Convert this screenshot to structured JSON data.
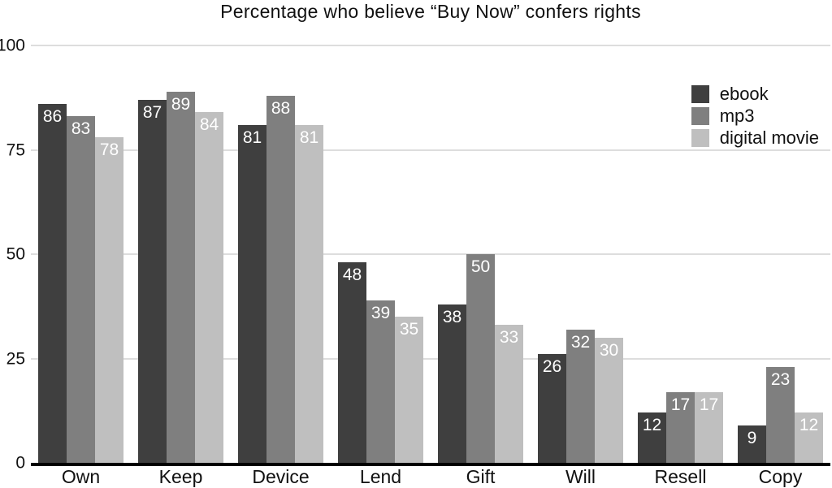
{
  "chart_data": {
    "type": "bar",
    "title": "Percentage who believe “Buy Now” confers rights",
    "categories": [
      "Own",
      "Keep",
      "Device",
      "Lend",
      "Gift",
      "Will",
      "Resell",
      "Copy"
    ],
    "series": [
      {
        "name": "ebook",
        "color": "#3f3f3f",
        "values": [
          86,
          87,
          81,
          48,
          38,
          26,
          12,
          9
        ]
      },
      {
        "name": "mp3",
        "color": "#7f7f7f",
        "values": [
          83,
          89,
          88,
          39,
          50,
          32,
          17,
          23
        ]
      },
      {
        "name": "digital movie",
        "color": "#bfbfbf",
        "values": [
          78,
          84,
          81,
          35,
          33,
          30,
          17,
          12
        ]
      }
    ],
    "xlabel": "",
    "ylabel": "",
    "ylim": [
      0,
      100
    ],
    "yticks": [
      0,
      25,
      50,
      75,
      100
    ],
    "grid": true,
    "value_labels": true,
    "legend_position": "top-right"
  },
  "style": {
    "gridline_color": "#dddddd",
    "axis_color": "#000000",
    "value_label_color": "#ffffff",
    "text_color": "#111111",
    "background": "#ffffff"
  }
}
